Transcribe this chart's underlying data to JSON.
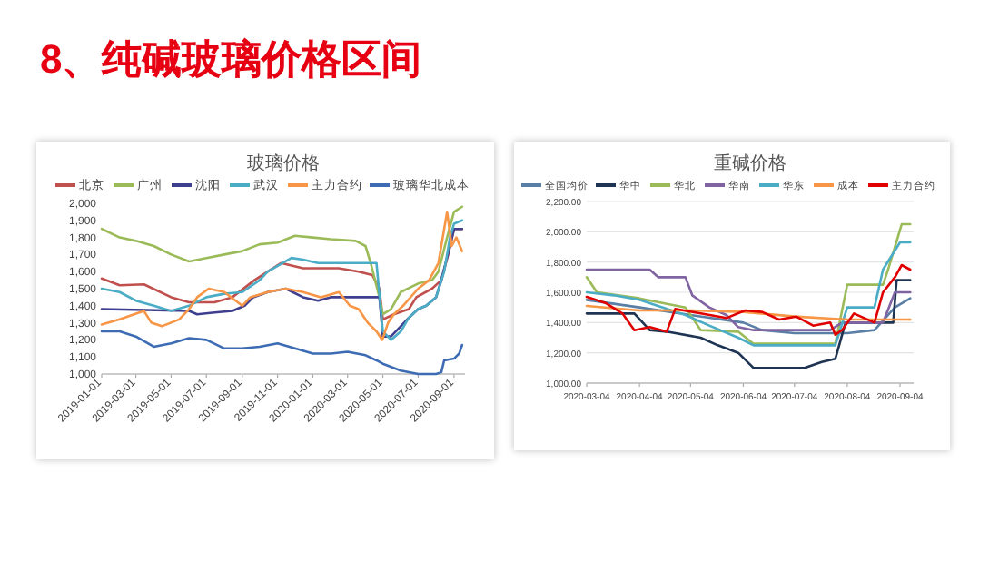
{
  "chart_data": [
    {
      "type": "line",
      "title": "玻璃价格",
      "annotations": [
        "8、纯碱玻璃价格区间"
      ],
      "legend": "top",
      "grid": false,
      "xlim": [
        "2019-01-01",
        "2020-09-20"
      ],
      "xticks": [
        "2019-01-01",
        "2019-03-01",
        "2019-05-01",
        "2019-07-01",
        "2019-09-01",
        "2019-11-01",
        "2020-01-01",
        "2020-03-01",
        "2020-05-01",
        "2020-07-01",
        "2020-09-01"
      ],
      "ylim": [
        1000,
        2000
      ],
      "yticks": [
        {
          "value": 1000,
          "label": "1,000"
        },
        {
          "value": 1100,
          "label": "1,100"
        },
        {
          "value": 1200,
          "label": "1,200"
        },
        {
          "value": 1300,
          "label": "1,300"
        },
        {
          "value": 1400,
          "label": "1,400"
        },
        {
          "value": 1500,
          "label": "1,500"
        },
        {
          "value": 1600,
          "label": "1,600"
        },
        {
          "value": 1700,
          "label": "1,700"
        },
        {
          "value": 1800,
          "label": "1,800"
        },
        {
          "value": 1900,
          "label": "1,900"
        },
        {
          "value": 2000,
          "label": "2,000"
        }
      ],
      "series": [
        {
          "name": "北京",
          "color": "#c0504d",
          "x": [
            "2019-01-01",
            "2019-02-01",
            "2019-03-15",
            "2019-05-01",
            "2019-06-01",
            "2019-07-15",
            "2019-08-15",
            "2019-09-22",
            "2019-10-15",
            "2019-11-07",
            "2019-12-15",
            "2020-02-15",
            "2020-03-20",
            "2020-04-13",
            "2020-04-25",
            "2020-05-01",
            "2020-05-20",
            "2020-06-15",
            "2020-06-28",
            "2020-07-25",
            "2020-08-10",
            "2020-08-22",
            "2020-09-01",
            "2020-09-15"
          ],
          "values": [
            1560,
            1520,
            1525,
            1450,
            1420,
            1420,
            1450,
            1550,
            1600,
            1650,
            1620,
            1620,
            1600,
            1580,
            1500,
            1320,
            1350,
            1380,
            1450,
            1500,
            1550,
            1700,
            1850,
            1850
          ]
        },
        {
          "name": "广州",
          "color": "#9bbb59",
          "x": [
            "2019-01-01",
            "2019-02-01",
            "2019-03-01",
            "2019-04-01",
            "2019-05-01",
            "2019-06-01",
            "2019-07-01",
            "2019-08-01",
            "2019-09-01",
            "2019-10-01",
            "2019-11-01",
            "2019-12-01",
            "2020-01-01",
            "2020-02-01",
            "2020-03-15",
            "2020-04-01",
            "2020-04-10",
            "2020-04-25",
            "2020-05-01",
            "2020-05-15",
            "2020-06-01",
            "2020-07-01",
            "2020-07-25",
            "2020-08-05",
            "2020-08-20",
            "2020-09-01",
            "2020-09-15"
          ],
          "values": [
            1850,
            1800,
            1780,
            1750,
            1700,
            1660,
            1680,
            1700,
            1720,
            1760,
            1770,
            1810,
            1800,
            1790,
            1780,
            1750,
            1650,
            1450,
            1350,
            1380,
            1480,
            1530,
            1550,
            1600,
            1800,
            1950,
            1980
          ]
        },
        {
          "name": "沈阳",
          "color": "#3f3f8f",
          "x": [
            "2019-01-01",
            "2019-06-01",
            "2019-06-15",
            "2019-07-15",
            "2019-08-15",
            "2019-09-05",
            "2019-09-20",
            "2019-10-15",
            "2019-11-15",
            "2019-12-15",
            "2020-01-10",
            "2020-02-01",
            "2020-04-25",
            "2020-05-01",
            "2020-05-15",
            "2020-06-01",
            "2020-06-15",
            "2020-07-01",
            "2020-07-15",
            "2020-08-01",
            "2020-08-10",
            "2020-08-25",
            "2020-09-01",
            "2020-09-15"
          ],
          "values": [
            1380,
            1370,
            1350,
            1360,
            1370,
            1400,
            1450,
            1480,
            1500,
            1450,
            1430,
            1450,
            1450,
            1220,
            1220,
            1280,
            1330,
            1380,
            1400,
            1450,
            1550,
            1750,
            1850,
            1850
          ]
        },
        {
          "name": "武汉",
          "color": "#4bacc6",
          "x": [
            "2019-01-01",
            "2019-02-01",
            "2019-03-01",
            "2019-04-01",
            "2019-05-01",
            "2019-06-01",
            "2019-07-01",
            "2019-08-01",
            "2019-09-01",
            "2019-10-01",
            "2019-10-15",
            "2019-11-25",
            "2019-12-15",
            "2020-01-10",
            "2020-04-20",
            "2020-05-01",
            "2020-05-15",
            "2020-06-01",
            "2020-06-15",
            "2020-07-01",
            "2020-07-15",
            "2020-08-01",
            "2020-08-15",
            "2020-08-25",
            "2020-09-01",
            "2020-09-15"
          ],
          "values": [
            1500,
            1480,
            1430,
            1400,
            1370,
            1400,
            1450,
            1470,
            1480,
            1550,
            1600,
            1680,
            1670,
            1650,
            1650,
            1250,
            1200,
            1250,
            1330,
            1380,
            1400,
            1450,
            1600,
            1800,
            1880,
            1900
          ]
        },
        {
          "name": "主力合约",
          "color": "#f79646",
          "x": [
            "2019-01-01",
            "2019-02-01",
            "2019-03-15",
            "2019-03-28",
            "2019-04-15",
            "2019-05-15",
            "2019-06-01",
            "2019-06-15",
            "2019-07-05",
            "2019-08-01",
            "2019-09-01",
            "2019-09-15",
            "2019-10-15",
            "2019-11-15",
            "2019-12-15",
            "2020-01-15",
            "2020-02-15",
            "2020-03-05",
            "2020-03-20",
            "2020-04-05",
            "2020-04-20",
            "2020-04-30",
            "2020-05-10",
            "2020-05-20",
            "2020-06-05",
            "2020-07-01",
            "2020-07-20",
            "2020-08-05",
            "2020-08-20",
            "2020-08-28",
            "2020-09-05",
            "2020-09-15"
          ],
          "values": [
            1290,
            1320,
            1370,
            1300,
            1280,
            1320,
            1380,
            1450,
            1500,
            1480,
            1400,
            1450,
            1480,
            1500,
            1480,
            1450,
            1480,
            1400,
            1380,
            1300,
            1250,
            1200,
            1300,
            1350,
            1400,
            1500,
            1550,
            1650,
            1950,
            1750,
            1800,
            1720
          ]
        },
        {
          "name": "玻璃华北成本",
          "color": "#3d6cb4",
          "x": [
            "2019-01-01",
            "2019-02-01",
            "2019-03-01",
            "2019-04-01",
            "2019-05-01",
            "2019-06-01",
            "2019-07-01",
            "2019-08-01",
            "2019-09-01",
            "2019-10-01",
            "2019-11-01",
            "2019-12-01",
            "2020-01-01",
            "2020-02-01",
            "2020-03-01",
            "2020-04-01",
            "2020-04-20",
            "2020-05-01",
            "2020-06-01",
            "2020-07-01",
            "2020-08-01",
            "2020-08-10",
            "2020-08-15",
            "2020-09-01",
            "2020-09-10",
            "2020-09-15"
          ],
          "values": [
            1250,
            1250,
            1220,
            1160,
            1180,
            1210,
            1200,
            1150,
            1150,
            1160,
            1180,
            1150,
            1120,
            1120,
            1130,
            1110,
            1080,
            1060,
            1020,
            1000,
            1000,
            1010,
            1080,
            1090,
            1120,
            1170
          ]
        }
      ]
    },
    {
      "type": "line",
      "title": "重碱价格",
      "legend": "top",
      "grid": "y",
      "xlim": [
        "2020-03-04",
        "2020-09-12"
      ],
      "xticks": [
        "2020-03-04",
        "2020-04-04",
        "2020-05-04",
        "2020-06-04",
        "2020-07-04",
        "2020-08-04",
        "2020-09-04"
      ],
      "ylim": [
        1000,
        2200
      ],
      "yticks": [
        {
          "value": 1000,
          "label": "1,000.00"
        },
        {
          "value": 1200,
          "label": "1,200.00"
        },
        {
          "value": 1400,
          "label": "1,400.00"
        },
        {
          "value": 1600,
          "label": "1,600.00"
        },
        {
          "value": 1800,
          "label": "1,800.00"
        },
        {
          "value": 2000,
          "label": "2,000.00"
        },
        {
          "value": 2200,
          "label": "2,200.00"
        }
      ],
      "series": [
        {
          "name": "全国均价",
          "color": "#5a7fa6",
          "x": [
            "2020-03-04",
            "2020-04-04",
            "2020-05-04",
            "2020-06-04",
            "2020-06-15",
            "2020-07-04",
            "2020-07-20",
            "2020-08-04",
            "2020-08-20",
            "2020-09-01",
            "2020-09-10"
          ],
          "values": [
            1550,
            1500,
            1450,
            1400,
            1350,
            1330,
            1330,
            1330,
            1350,
            1500,
            1560
          ]
        },
        {
          "name": "华中",
          "color": "#1f3352",
          "x": [
            "2020-03-04",
            "2020-04-01",
            "2020-04-10",
            "2020-04-20",
            "2020-05-10",
            "2020-05-20",
            "2020-06-01",
            "2020-06-10",
            "2020-07-10",
            "2020-07-20",
            "2020-07-28",
            "2020-08-03",
            "2020-08-31",
            "2020-09-02",
            "2020-09-10"
          ],
          "values": [
            1460,
            1460,
            1350,
            1340,
            1300,
            1250,
            1200,
            1100,
            1100,
            1140,
            1160,
            1400,
            1400,
            1680,
            1680
          ]
        },
        {
          "name": "华北",
          "color": "#9bbb59",
          "x": [
            "2020-03-04",
            "2020-03-10",
            "2020-04-04",
            "2020-05-01",
            "2020-05-10",
            "2020-06-01",
            "2020-06-10",
            "2020-07-28",
            "2020-08-04",
            "2020-08-25",
            "2020-08-28",
            "2020-09-05",
            "2020-09-10"
          ],
          "values": [
            1700,
            1600,
            1560,
            1500,
            1350,
            1340,
            1260,
            1260,
            1650,
            1650,
            1750,
            2050,
            2050
          ]
        },
        {
          "name": "华南",
          "color": "#8064a2",
          "x": [
            "2020-03-04",
            "2020-04-10",
            "2020-04-15",
            "2020-05-01",
            "2020-05-05",
            "2020-05-15",
            "2020-05-25",
            "2020-06-01",
            "2020-06-10",
            "2020-07-25",
            "2020-08-01",
            "2020-08-25",
            "2020-09-01",
            "2020-09-10"
          ],
          "values": [
            1750,
            1750,
            1700,
            1700,
            1580,
            1500,
            1450,
            1370,
            1350,
            1350,
            1400,
            1400,
            1600,
            1600
          ]
        },
        {
          "name": "华东",
          "color": "#4bacc6",
          "x": [
            "2020-03-04",
            "2020-03-20",
            "2020-04-04",
            "2020-05-01",
            "2020-05-15",
            "2020-06-01",
            "2020-06-10",
            "2020-07-28",
            "2020-08-04",
            "2020-08-20",
            "2020-08-25",
            "2020-09-04",
            "2020-09-10"
          ],
          "values": [
            1600,
            1580,
            1550,
            1450,
            1380,
            1300,
            1250,
            1250,
            1500,
            1500,
            1750,
            1930,
            1930
          ]
        },
        {
          "name": "成本",
          "color": "#f79646",
          "x": [
            "2020-03-04",
            "2020-04-04",
            "2020-05-04",
            "2020-06-04",
            "2020-07-04",
            "2020-08-04",
            "2020-09-10"
          ],
          "values": [
            1510,
            1480,
            1480,
            1470,
            1440,
            1420,
            1420
          ]
        },
        {
          "name": "主力合约",
          "color": "#e00000",
          "x": [
            "2020-03-04",
            "2020-03-15",
            "2020-03-25",
            "2020-04-01",
            "2020-04-10",
            "2020-04-20",
            "2020-04-25",
            "2020-05-10",
            "2020-05-25",
            "2020-06-05",
            "2020-06-15",
            "2020-06-25",
            "2020-07-05",
            "2020-07-15",
            "2020-07-25",
            "2020-07-28",
            "2020-08-01",
            "2020-08-08",
            "2020-08-20",
            "2020-08-25",
            "2020-09-01",
            "2020-09-05",
            "2020-09-10"
          ],
          "values": [
            1570,
            1530,
            1460,
            1350,
            1370,
            1340,
            1490,
            1460,
            1430,
            1480,
            1470,
            1420,
            1440,
            1380,
            1400,
            1320,
            1350,
            1460,
            1400,
            1600,
            1700,
            1780,
            1750
          ]
        }
      ]
    }
  ]
}
